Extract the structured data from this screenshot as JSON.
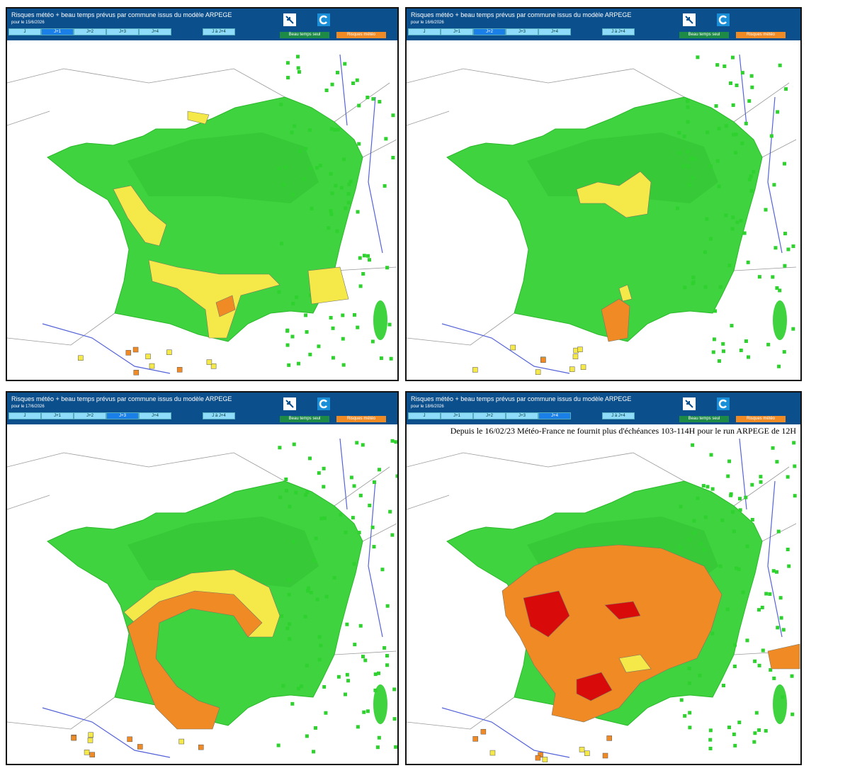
{
  "panels": [
    {
      "title": "Risques météo + beau temps prévus par commune issus du modèle ARPEGE",
      "date": "pour le 15/6/2026",
      "tabs": [
        "J",
        "J+1",
        "J+2",
        "J+3",
        "J+4"
      ],
      "range_tab": "J à J+4",
      "active_tab": 1,
      "buttons": [
        "Beau temps seul",
        "Risques météo"
      ]
    },
    {
      "title": "Risques météo + beau temps prévus par commune issus du modèle ARPEGE",
      "date": "pour le 16/6/2026",
      "tabs": [
        "J",
        "J+1",
        "J+2",
        "J+3",
        "J+4"
      ],
      "range_tab": "J à J+4",
      "active_tab": 2,
      "buttons": [
        "Beau temps seul",
        "Risques météo"
      ]
    },
    {
      "title": "Risques météo + beau temps prévus par commune issus du modèle ARPEGE",
      "date": "pour le 17/6/2026",
      "tabs": [
        "J",
        "J+1",
        "J+2",
        "J+3",
        "J+4"
      ],
      "range_tab": "J à J+4",
      "active_tab": 3,
      "buttons": [
        "Beau temps seul",
        "Risques météo"
      ]
    },
    {
      "title": "Risques météo + beau temps prévus par commune issus du modèle ARPEGE",
      "date": "pour le 18/6/2026",
      "tabs": [
        "J",
        "J+1",
        "J+2",
        "J+3",
        "J+4"
      ],
      "range_tab": "J à J+4",
      "active_tab": 4,
      "buttons": [
        "Beau temps seul",
        "Risques météo"
      ],
      "notice": "Depuis le 16/02/23 Météo-France ne fournit plus d'échéances 103-114H pour le run ARPEGE de 12H"
    }
  ]
}
